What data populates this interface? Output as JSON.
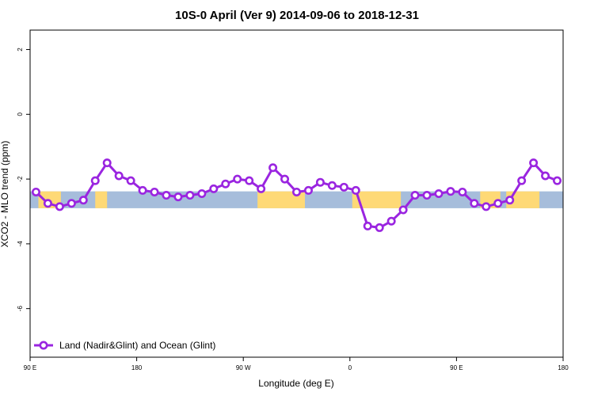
{
  "chart_data": {
    "type": "line",
    "title": "10S-0 April (Ver 9)   2014-09-06 to 2018-12-31",
    "xlabel": "Longitude (deg E)",
    "ylabel": "XCO2 - MLO trend (ppm)",
    "xlim": [
      90,
      540
    ],
    "ylim": [
      -7.5,
      2.6
    ],
    "x_ticks": [
      {
        "value": 90,
        "label": "90 E"
      },
      {
        "value": 180,
        "label": "180"
      },
      {
        "value": 270,
        "label": "90 W"
      },
      {
        "value": 360,
        "label": "0"
      },
      {
        "value": 450,
        "label": "90 E"
      },
      {
        "value": 540,
        "label": "180"
      }
    ],
    "y_ticks": [
      {
        "value": 2,
        "label": "2"
      },
      {
        "value": 0,
        "label": "0"
      },
      {
        "value": -2,
        "label": "-2"
      },
      {
        "value": -4,
        "label": "-4"
      },
      {
        "value": -6,
        "label": "-6"
      }
    ],
    "grid": false,
    "legend_position": "bottom-left",
    "background_band": {
      "y_range": [
        -2.9,
        -2.38
      ],
      "ocean_color": "#a6bddb",
      "land_color": "#fed976",
      "land_spans": [
        [
          97,
          116
        ],
        [
          145,
          155
        ],
        [
          282,
          322
        ],
        [
          362,
          403
        ],
        [
          470,
          487
        ],
        [
          492,
          520
        ]
      ]
    },
    "series": [
      {
        "name": "Land (Nadir&Glint) and Ocean (Glint)",
        "color": "#9a25e0",
        "x": [
          95,
          105,
          115,
          125,
          135,
          145,
          155,
          165,
          175,
          185,
          195,
          205,
          215,
          225,
          235,
          245,
          255,
          265,
          275,
          285,
          295,
          305,
          315,
          325,
          335,
          345,
          355,
          365,
          375,
          385,
          395,
          405,
          415,
          425,
          435,
          445,
          455,
          465,
          475,
          485,
          495,
          505,
          515,
          525,
          535
        ],
        "y": [
          -2.4,
          -2.75,
          -2.85,
          -2.75,
          -2.65,
          -2.05,
          -1.5,
          -1.9,
          -2.05,
          -2.35,
          -2.4,
          -2.5,
          -2.55,
          -2.5,
          -2.45,
          -2.3,
          -2.15,
          -2.0,
          -2.05,
          -2.3,
          -1.65,
          -2.0,
          -2.4,
          -2.35,
          -2.1,
          -2.2,
          -2.25,
          -2.35,
          -3.45,
          -3.5,
          -3.3,
          -2.95,
          -2.5,
          -2.5,
          -2.45,
          -2.38,
          -2.4,
          -2.75,
          -2.85,
          -2.75,
          -2.65,
          -2.05,
          -1.5,
          -1.9,
          -2.05
        ]
      }
    ]
  }
}
